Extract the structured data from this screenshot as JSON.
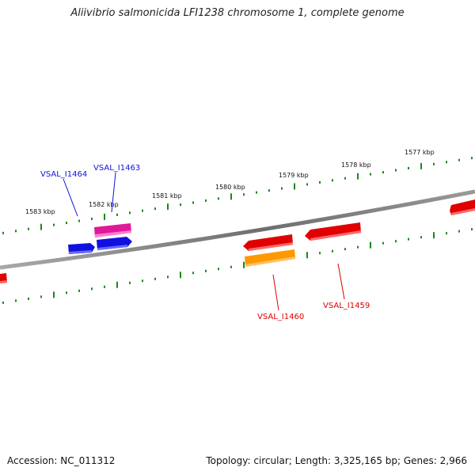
{
  "title": "Aliivibrio salmonicida LFI1238 chromosome 1, complete genome",
  "footer": {
    "accession": "Accession: NC_011312",
    "summary": "Topology: circular; Length: 3,325,165 bp; Genes: 2,966"
  },
  "ticks": [
    {
      "label": "1583 kbp"
    },
    {
      "label": "1582 kbp"
    },
    {
      "label": "1581 kbp"
    },
    {
      "label": "1580 kbp"
    },
    {
      "label": "1579 kbp"
    },
    {
      "label": "1578 kbp"
    },
    {
      "label": "1577 kbp"
    }
  ],
  "genes": [
    {
      "name": "VSAL_I1464",
      "color": "#1010e0"
    },
    {
      "name": "VSAL_I1463",
      "color": "#1010e0"
    },
    {
      "name": "VSAL_I1460",
      "color": "#dd0000"
    },
    {
      "name": "VSAL_I1459",
      "color": "#dd0000"
    }
  ],
  "colors": {
    "backbone": "#808080",
    "tick": "#1a8a1a",
    "forward_blue": "#1010e0",
    "pink": "#e0189a",
    "red": "#e00000",
    "orange": "#ff9900"
  }
}
